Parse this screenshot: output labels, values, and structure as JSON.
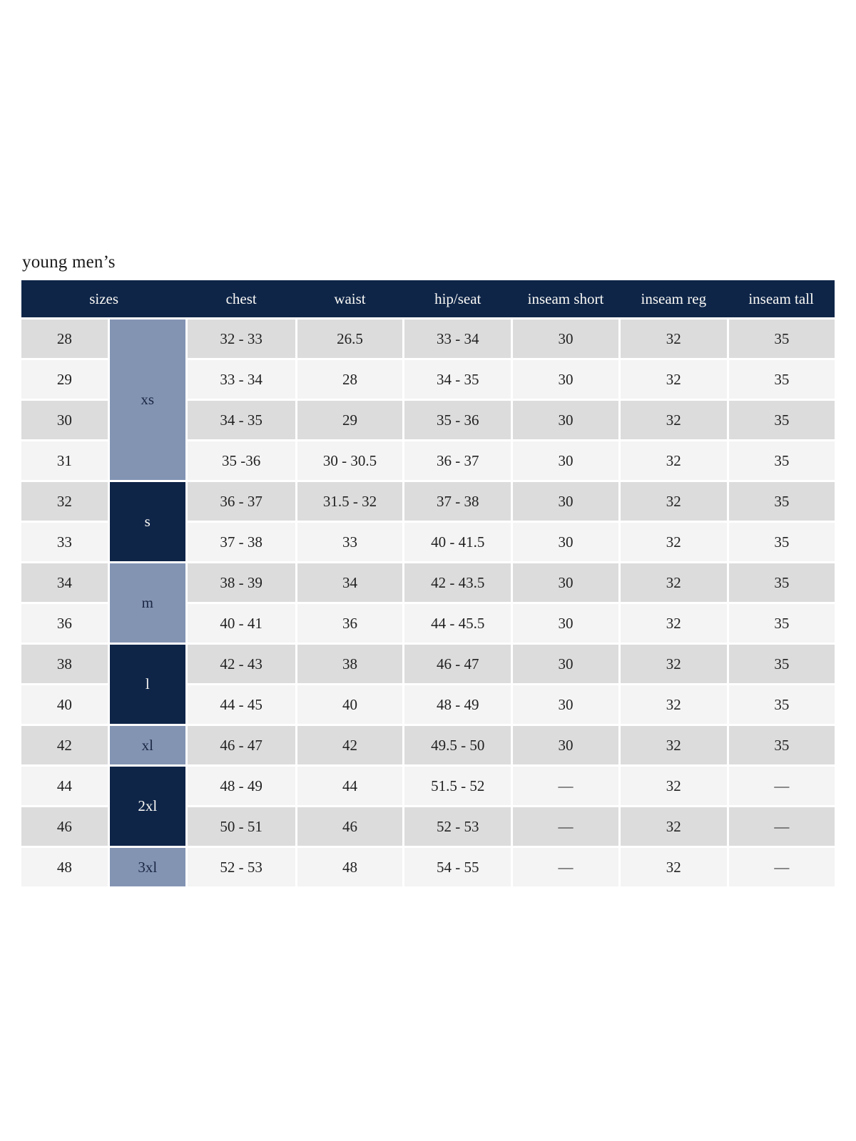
{
  "page_title": "young men’s",
  "colors": {
    "header_bg": "#0e2548",
    "header_text": "#faf9f5",
    "group_dark_bg": "#0e2548",
    "group_light_bg": "#8394b3",
    "row_gray": "#dcdcdc",
    "row_light": "#f4f4f4",
    "body_text": "#212121",
    "page_bg": "#ffffff"
  },
  "chart_data": {
    "type": "table",
    "title": "young men’s",
    "columns": [
      "sizes",
      "chest",
      "waist",
      "hip/seat",
      "inseam short",
      "inseam reg",
      "inseam tall"
    ],
    "size_groups": [
      {
        "label": "xs",
        "span": 4,
        "tone": "light"
      },
      {
        "label": "s",
        "span": 2,
        "tone": "dark"
      },
      {
        "label": "m",
        "span": 2,
        "tone": "light"
      },
      {
        "label": "l",
        "span": 2,
        "tone": "dark"
      },
      {
        "label": "xl",
        "span": 1,
        "tone": "light"
      },
      {
        "label": "2xl",
        "span": 2,
        "tone": "dark"
      },
      {
        "label": "3xl",
        "span": 1,
        "tone": "light"
      }
    ],
    "rows": [
      {
        "size": "28",
        "chest": "32 - 33",
        "waist": "26.5",
        "hip_seat": "33 - 34",
        "inseam_short": "30",
        "inseam_reg": "32",
        "inseam_tall": "35"
      },
      {
        "size": "29",
        "chest": "33 - 34",
        "waist": "28",
        "hip_seat": "34 - 35",
        "inseam_short": "30",
        "inseam_reg": "32",
        "inseam_tall": "35"
      },
      {
        "size": "30",
        "chest": "34 - 35",
        "waist": "29",
        "hip_seat": "35 - 36",
        "inseam_short": "30",
        "inseam_reg": "32",
        "inseam_tall": "35"
      },
      {
        "size": "31",
        "chest": "35 -36",
        "waist": "30 - 30.5",
        "hip_seat": "36 - 37",
        "inseam_short": "30",
        "inseam_reg": "32",
        "inseam_tall": "35"
      },
      {
        "size": "32",
        "chest": "36 - 37",
        "waist": "31.5 - 32",
        "hip_seat": "37 - 38",
        "inseam_short": "30",
        "inseam_reg": "32",
        "inseam_tall": "35"
      },
      {
        "size": "33",
        "chest": "37 - 38",
        "waist": "33",
        "hip_seat": "40 - 41.5",
        "inseam_short": "30",
        "inseam_reg": "32",
        "inseam_tall": "35"
      },
      {
        "size": "34",
        "chest": "38 - 39",
        "waist": "34",
        "hip_seat": "42 - 43.5",
        "inseam_short": "30",
        "inseam_reg": "32",
        "inseam_tall": "35"
      },
      {
        "size": "36",
        "chest": "40 - 41",
        "waist": "36",
        "hip_seat": "44 - 45.5",
        "inseam_short": "30",
        "inseam_reg": "32",
        "inseam_tall": "35"
      },
      {
        "size": "38",
        "chest": "42 - 43",
        "waist": "38",
        "hip_seat": "46 - 47",
        "inseam_short": "30",
        "inseam_reg": "32",
        "inseam_tall": "35"
      },
      {
        "size": "40",
        "chest": "44 - 45",
        "waist": "40",
        "hip_seat": "48 - 49",
        "inseam_short": "30",
        "inseam_reg": "32",
        "inseam_tall": "35"
      },
      {
        "size": "42",
        "chest": "46 - 47",
        "waist": "42",
        "hip_seat": "49.5 - 50",
        "inseam_short": "30",
        "inseam_reg": "32",
        "inseam_tall": "35"
      },
      {
        "size": "44",
        "chest": "48 - 49",
        "waist": "44",
        "hip_seat": "51.5 - 52",
        "inseam_short": "—",
        "inseam_reg": "32",
        "inseam_tall": "—"
      },
      {
        "size": "46",
        "chest": "50 - 51",
        "waist": "46",
        "hip_seat": "52 - 53",
        "inseam_short": "—",
        "inseam_reg": "32",
        "inseam_tall": "—"
      },
      {
        "size": "48",
        "chest": "52 - 53",
        "waist": "48",
        "hip_seat": "54 - 55",
        "inseam_short": "—",
        "inseam_reg": "32",
        "inseam_tall": "—"
      }
    ]
  }
}
